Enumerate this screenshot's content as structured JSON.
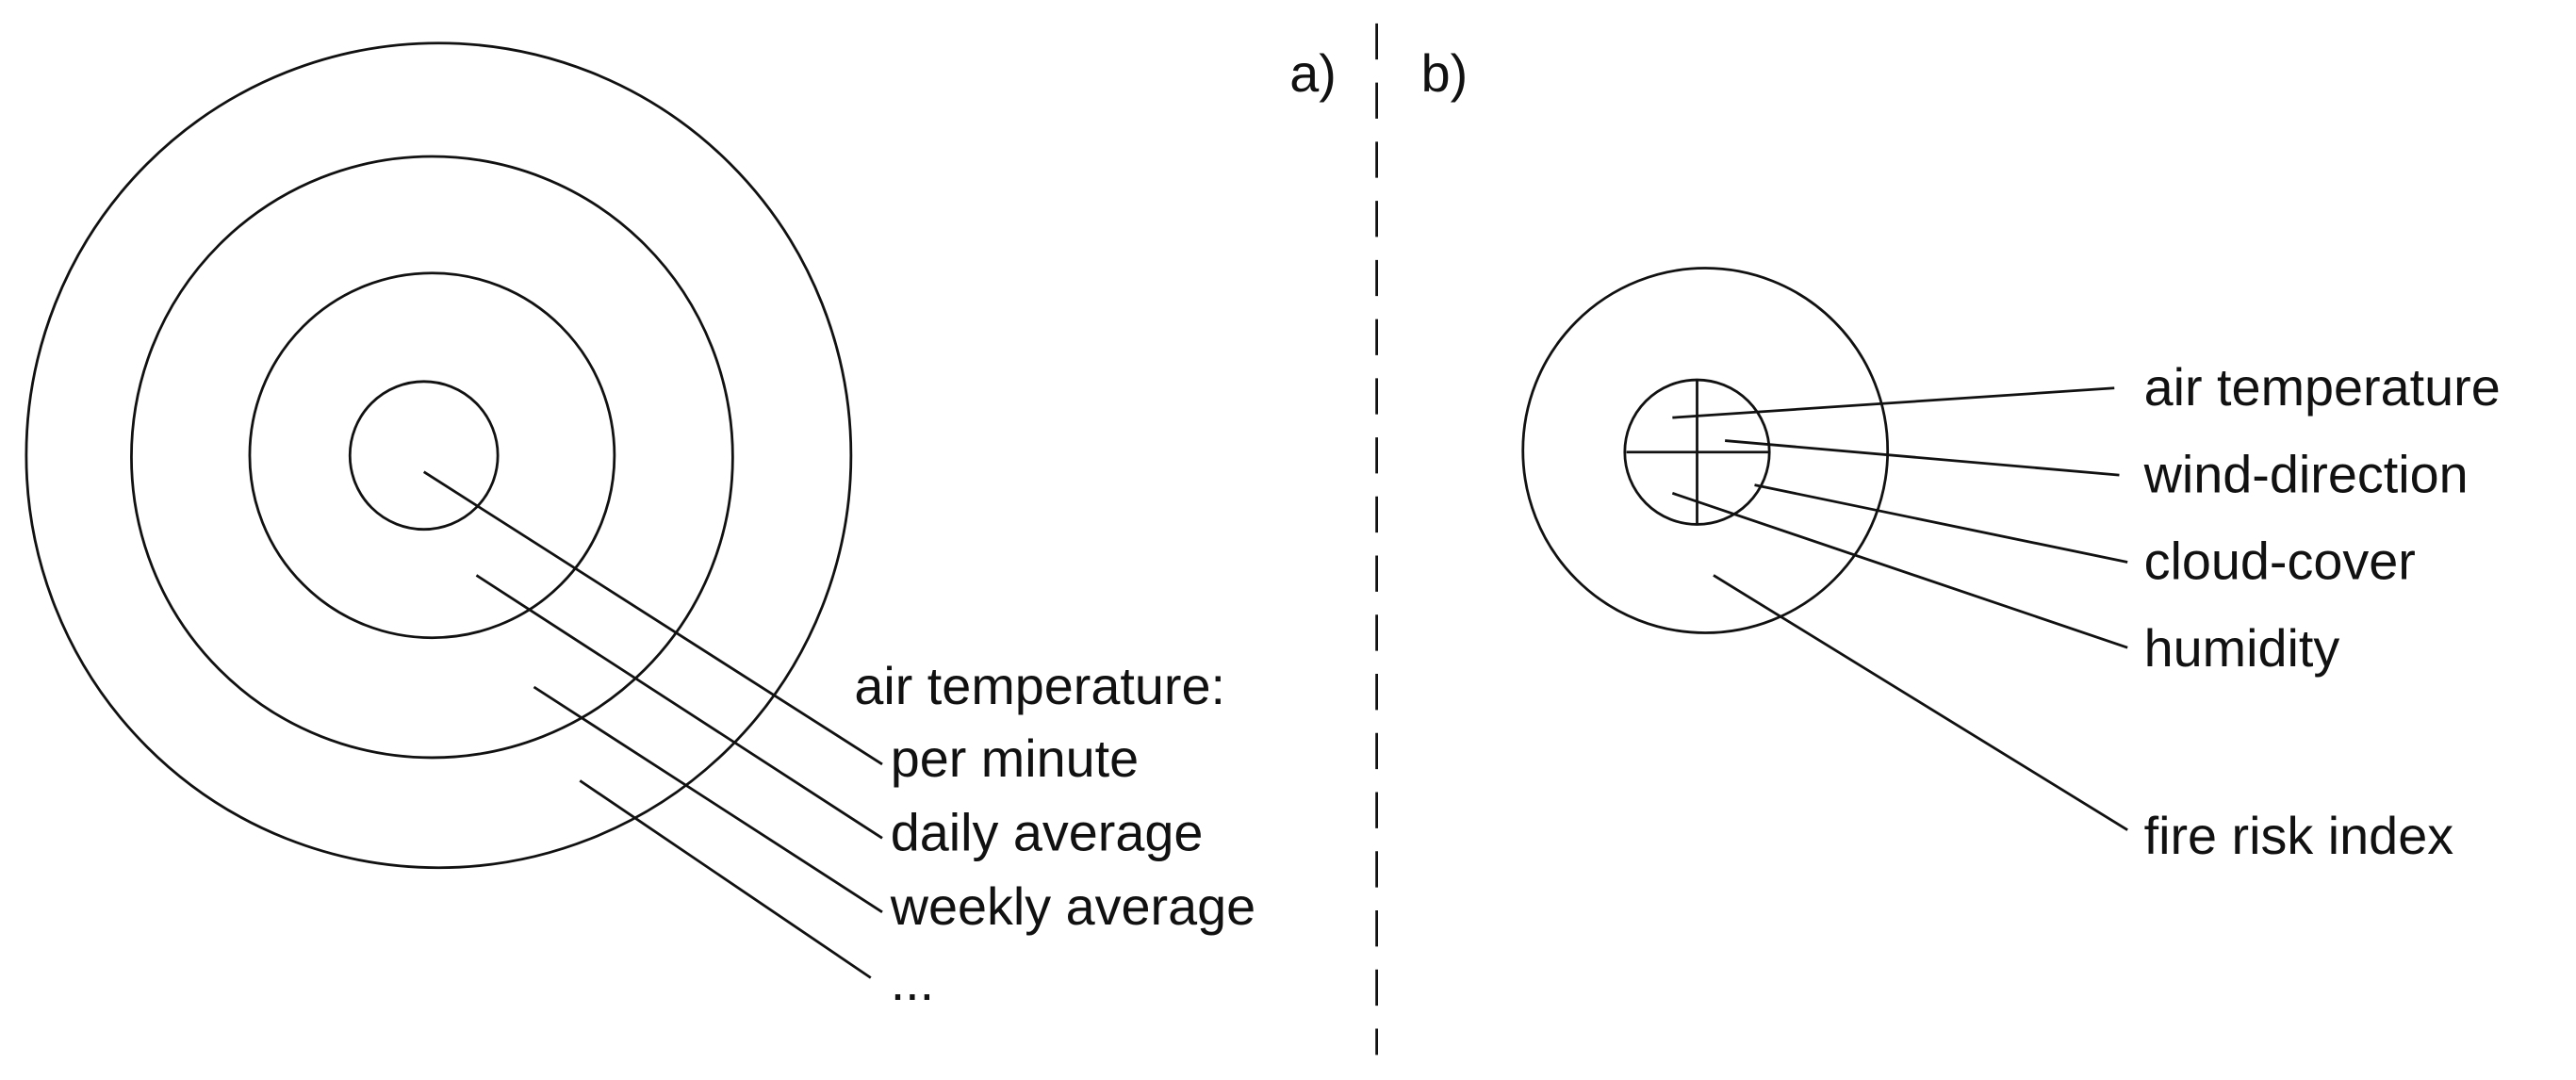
{
  "panel_a": {
    "label": "a)",
    "heading": "air temperature:",
    "items": [
      "per minute",
      "daily average",
      "weekly average",
      "..."
    ]
  },
  "panel_b": {
    "label": "b)",
    "items": [
      "air temperature",
      "wind-direction",
      "cloud-cover",
      "humidity",
      "fire risk index"
    ]
  }
}
